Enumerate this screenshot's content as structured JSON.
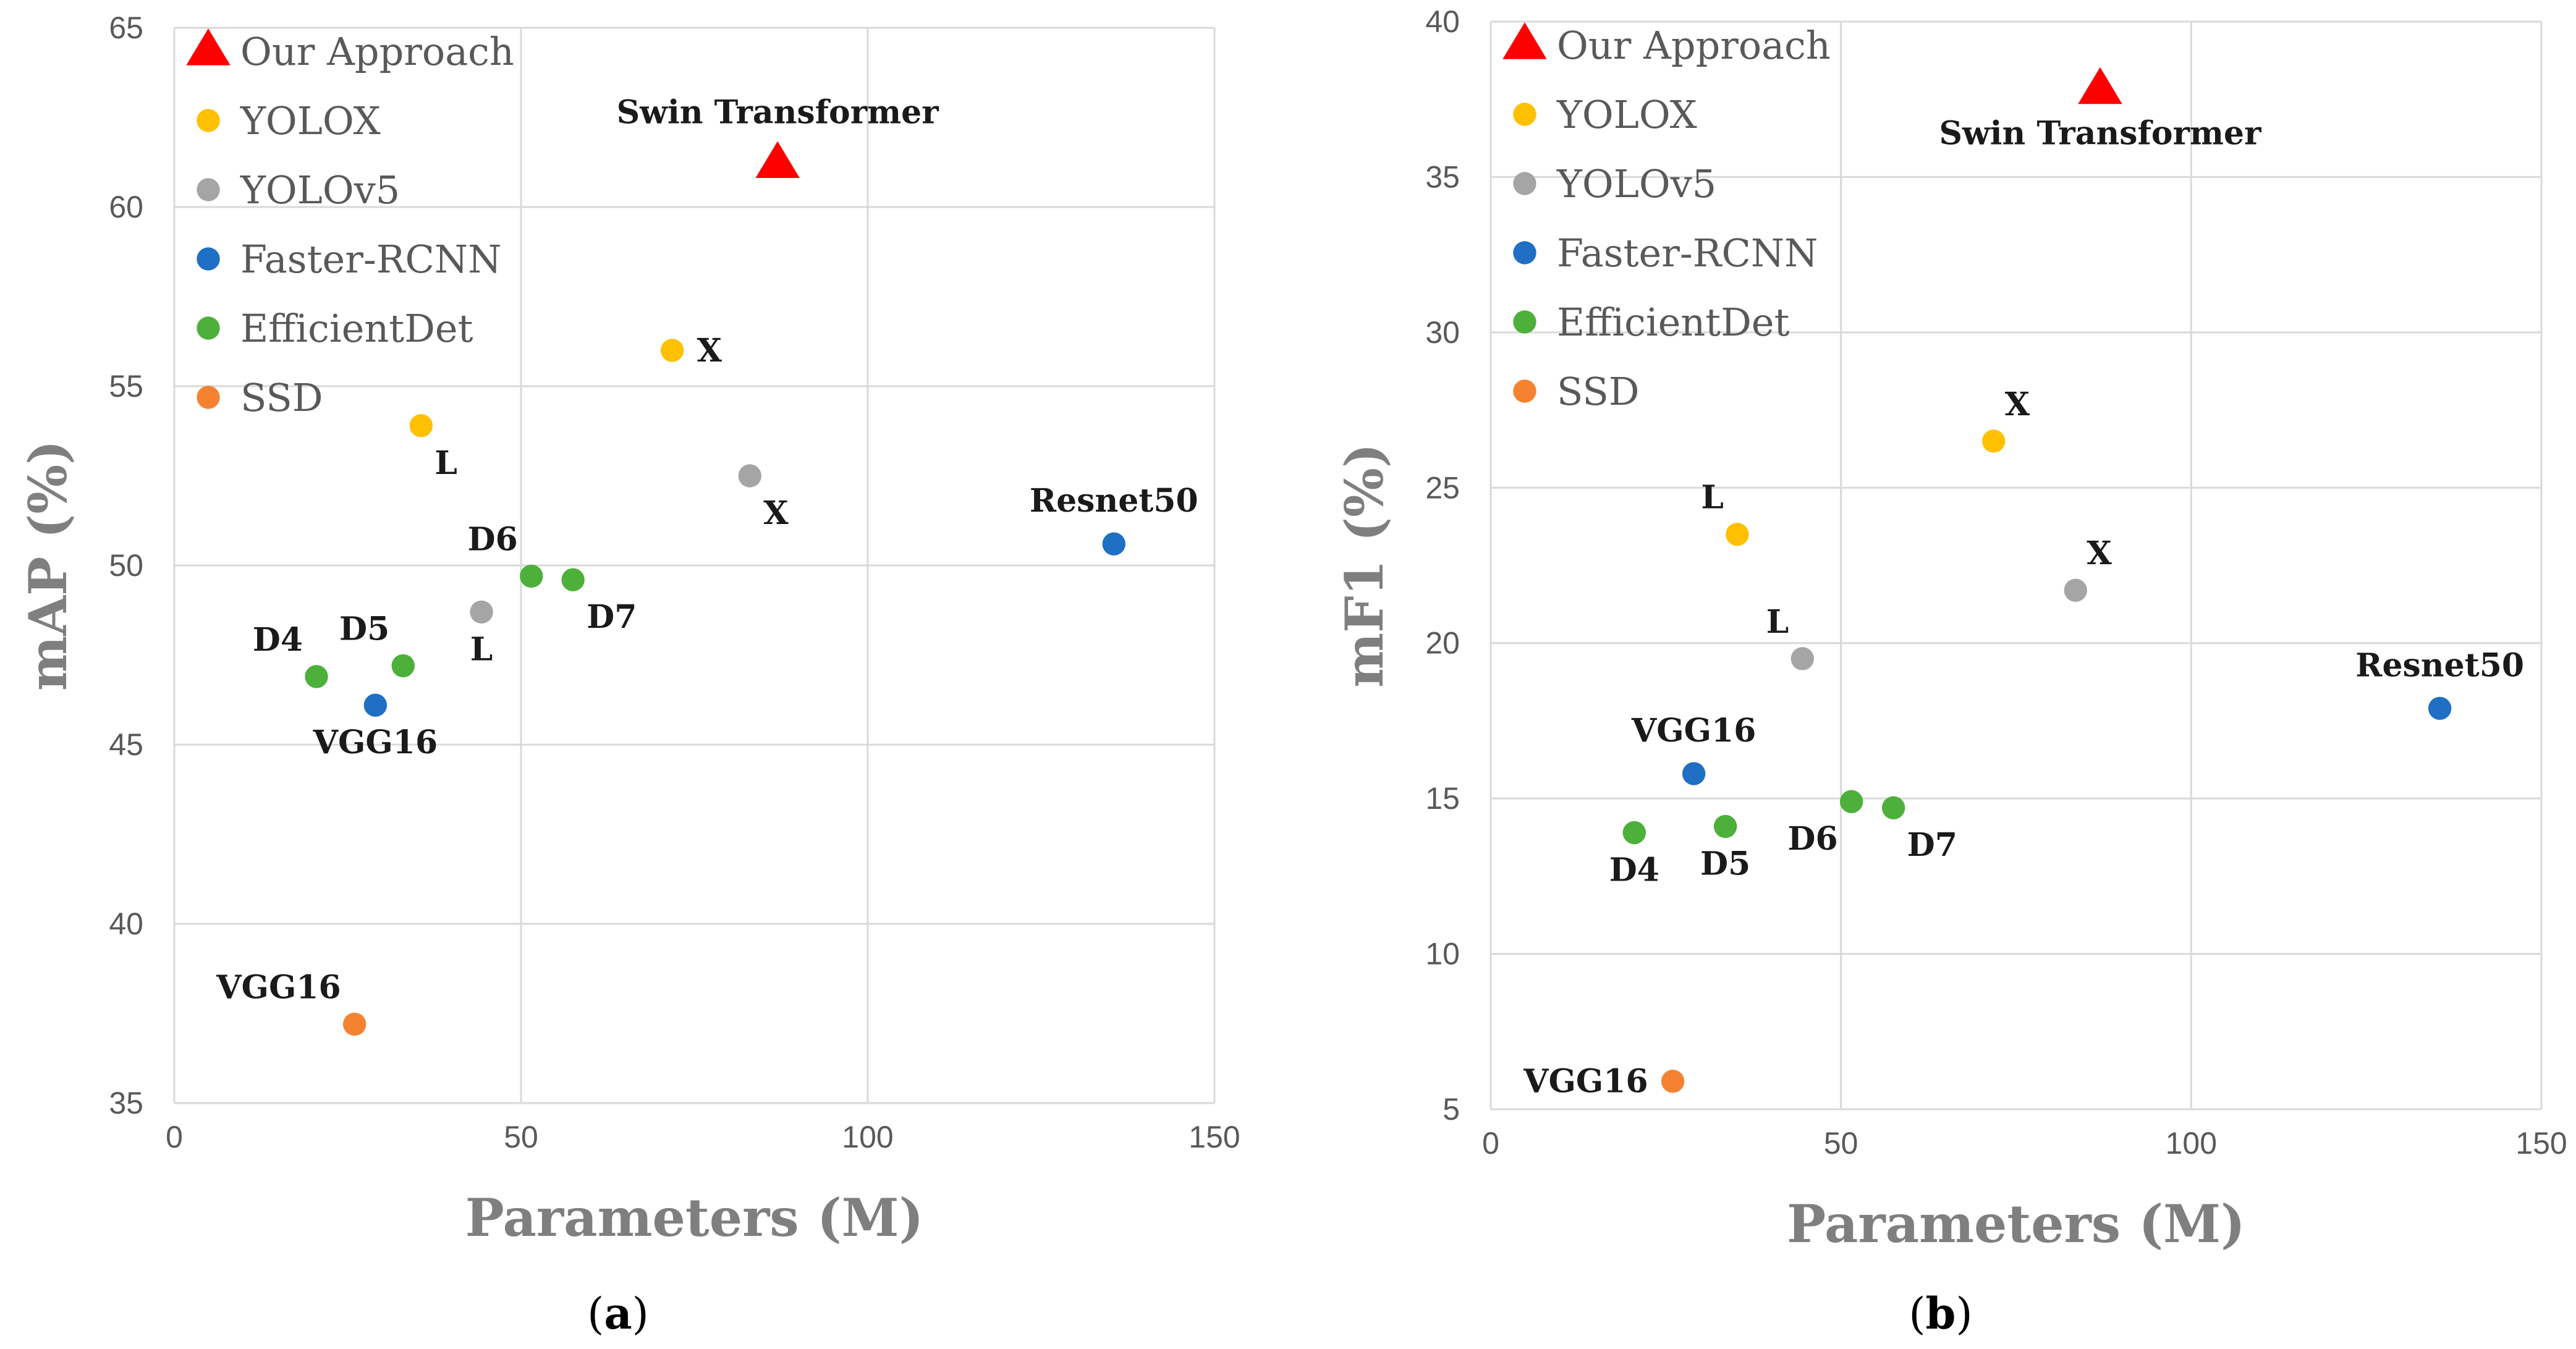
{
  "series_meta": [
    {
      "name": "Our Approach",
      "color": "#ff0000",
      "marker": "triangle"
    },
    {
      "name": "YOLOX",
      "color": "#ffc000",
      "marker": "circle"
    },
    {
      "name": "YOLOv5",
      "color": "#a5a5a5",
      "marker": "circle"
    },
    {
      "name": "Faster-RCNN",
      "color": "#1f6fc5",
      "marker": "circle"
    },
    {
      "name": "EfficientDet",
      "color": "#4cb03a",
      "marker": "circle"
    },
    {
      "name": "SSD",
      "color": "#f58231",
      "marker": "circle"
    }
  ],
  "chart_data": [
    {
      "type": "scatter",
      "caption": "a",
      "xlabel": "Parameters (M)",
      "ylabel": "mAP (%)",
      "xlim": [
        0,
        150
      ],
      "ylim": [
        35,
        65
      ],
      "xticks": [
        0,
        50,
        100,
        150
      ],
      "yticks": [
        35,
        40,
        45,
        50,
        55,
        60,
        65
      ],
      "grid": true,
      "legend": "top-left",
      "points": [
        {
          "series": "Our Approach",
          "label": "Swin Transformer",
          "x": 87,
          "y": 61.2,
          "label_side": "top"
        },
        {
          "series": "YOLOX",
          "label": "X",
          "x": 71.8,
          "y": 56.0,
          "label_side": "right"
        },
        {
          "series": "YOLOX",
          "label": "L",
          "x": 35.6,
          "y": 53.9,
          "label_side": "below-right"
        },
        {
          "series": "YOLOv5",
          "label": "X",
          "x": 83.0,
          "y": 52.5,
          "label_side": "below-right"
        },
        {
          "series": "YOLOv5",
          "label": "L",
          "x": 44.3,
          "y": 48.7,
          "label_side": "below"
        },
        {
          "series": "Faster-RCNN",
          "label": "Resnet50",
          "x": 135.5,
          "y": 50.6,
          "label_side": "top"
        },
        {
          "series": "Faster-RCNN",
          "label": "VGG16",
          "x": 29.0,
          "y": 46.1,
          "label_side": "below"
        },
        {
          "series": "EfficientDet",
          "label": "D6",
          "x": 51.5,
          "y": 49.7,
          "label_side": "top-left"
        },
        {
          "series": "EfficientDet",
          "label": "D7",
          "x": 57.5,
          "y": 49.6,
          "label_side": "below-right"
        },
        {
          "series": "EfficientDet",
          "label": "D4",
          "x": 20.5,
          "y": 46.9,
          "label_side": "top-left"
        },
        {
          "series": "EfficientDet",
          "label": "D5",
          "x": 33.0,
          "y": 47.2,
          "label_side": "top-left"
        },
        {
          "series": "SSD",
          "label": "VGG16",
          "x": 26.0,
          "y": 37.2,
          "label_side": "top-left"
        }
      ]
    },
    {
      "type": "scatter",
      "caption": "b",
      "xlabel": "Parameters (M)",
      "ylabel": "mF1 (%)",
      "xlim": [
        0,
        150
      ],
      "ylim": [
        5,
        40
      ],
      "xticks": [
        0,
        50,
        100,
        150
      ],
      "yticks": [
        5,
        10,
        15,
        20,
        25,
        30,
        35,
        40
      ],
      "grid": true,
      "legend": "top-left",
      "points": [
        {
          "series": "Our Approach",
          "label": "Swin Transformer",
          "x": 87,
          "y": 37.8,
          "label_side": "below"
        },
        {
          "series": "YOLOX",
          "label": "X",
          "x": 71.8,
          "y": 26.5,
          "label_side": "top-right"
        },
        {
          "series": "YOLOX",
          "label": "L",
          "x": 35.2,
          "y": 23.5,
          "label_side": "top-left"
        },
        {
          "series": "YOLOv5",
          "label": "X",
          "x": 83.5,
          "y": 21.7,
          "label_side": "top-right"
        },
        {
          "series": "YOLOv5",
          "label": "L",
          "x": 44.5,
          "y": 19.5,
          "label_side": "top-left"
        },
        {
          "series": "Faster-RCNN",
          "label": "Resnet50",
          "x": 135.5,
          "y": 17.9,
          "label_side": "top"
        },
        {
          "series": "Faster-RCNN",
          "label": "VGG16",
          "x": 29.0,
          "y": 15.8,
          "label_side": "top"
        },
        {
          "series": "EfficientDet",
          "label": "D4",
          "x": 20.5,
          "y": 13.9,
          "label_side": "below"
        },
        {
          "series": "EfficientDet",
          "label": "D5",
          "x": 33.5,
          "y": 14.1,
          "label_side": "below"
        },
        {
          "series": "EfficientDet",
          "label": "D6",
          "x": 51.5,
          "y": 14.9,
          "label_side": "below-left"
        },
        {
          "series": "EfficientDet",
          "label": "D7",
          "x": 57.5,
          "y": 14.7,
          "label_side": "below-right"
        },
        {
          "series": "SSD",
          "label": "VGG16",
          "x": 26.0,
          "y": 5.9,
          "label_side": "left"
        }
      ]
    }
  ]
}
